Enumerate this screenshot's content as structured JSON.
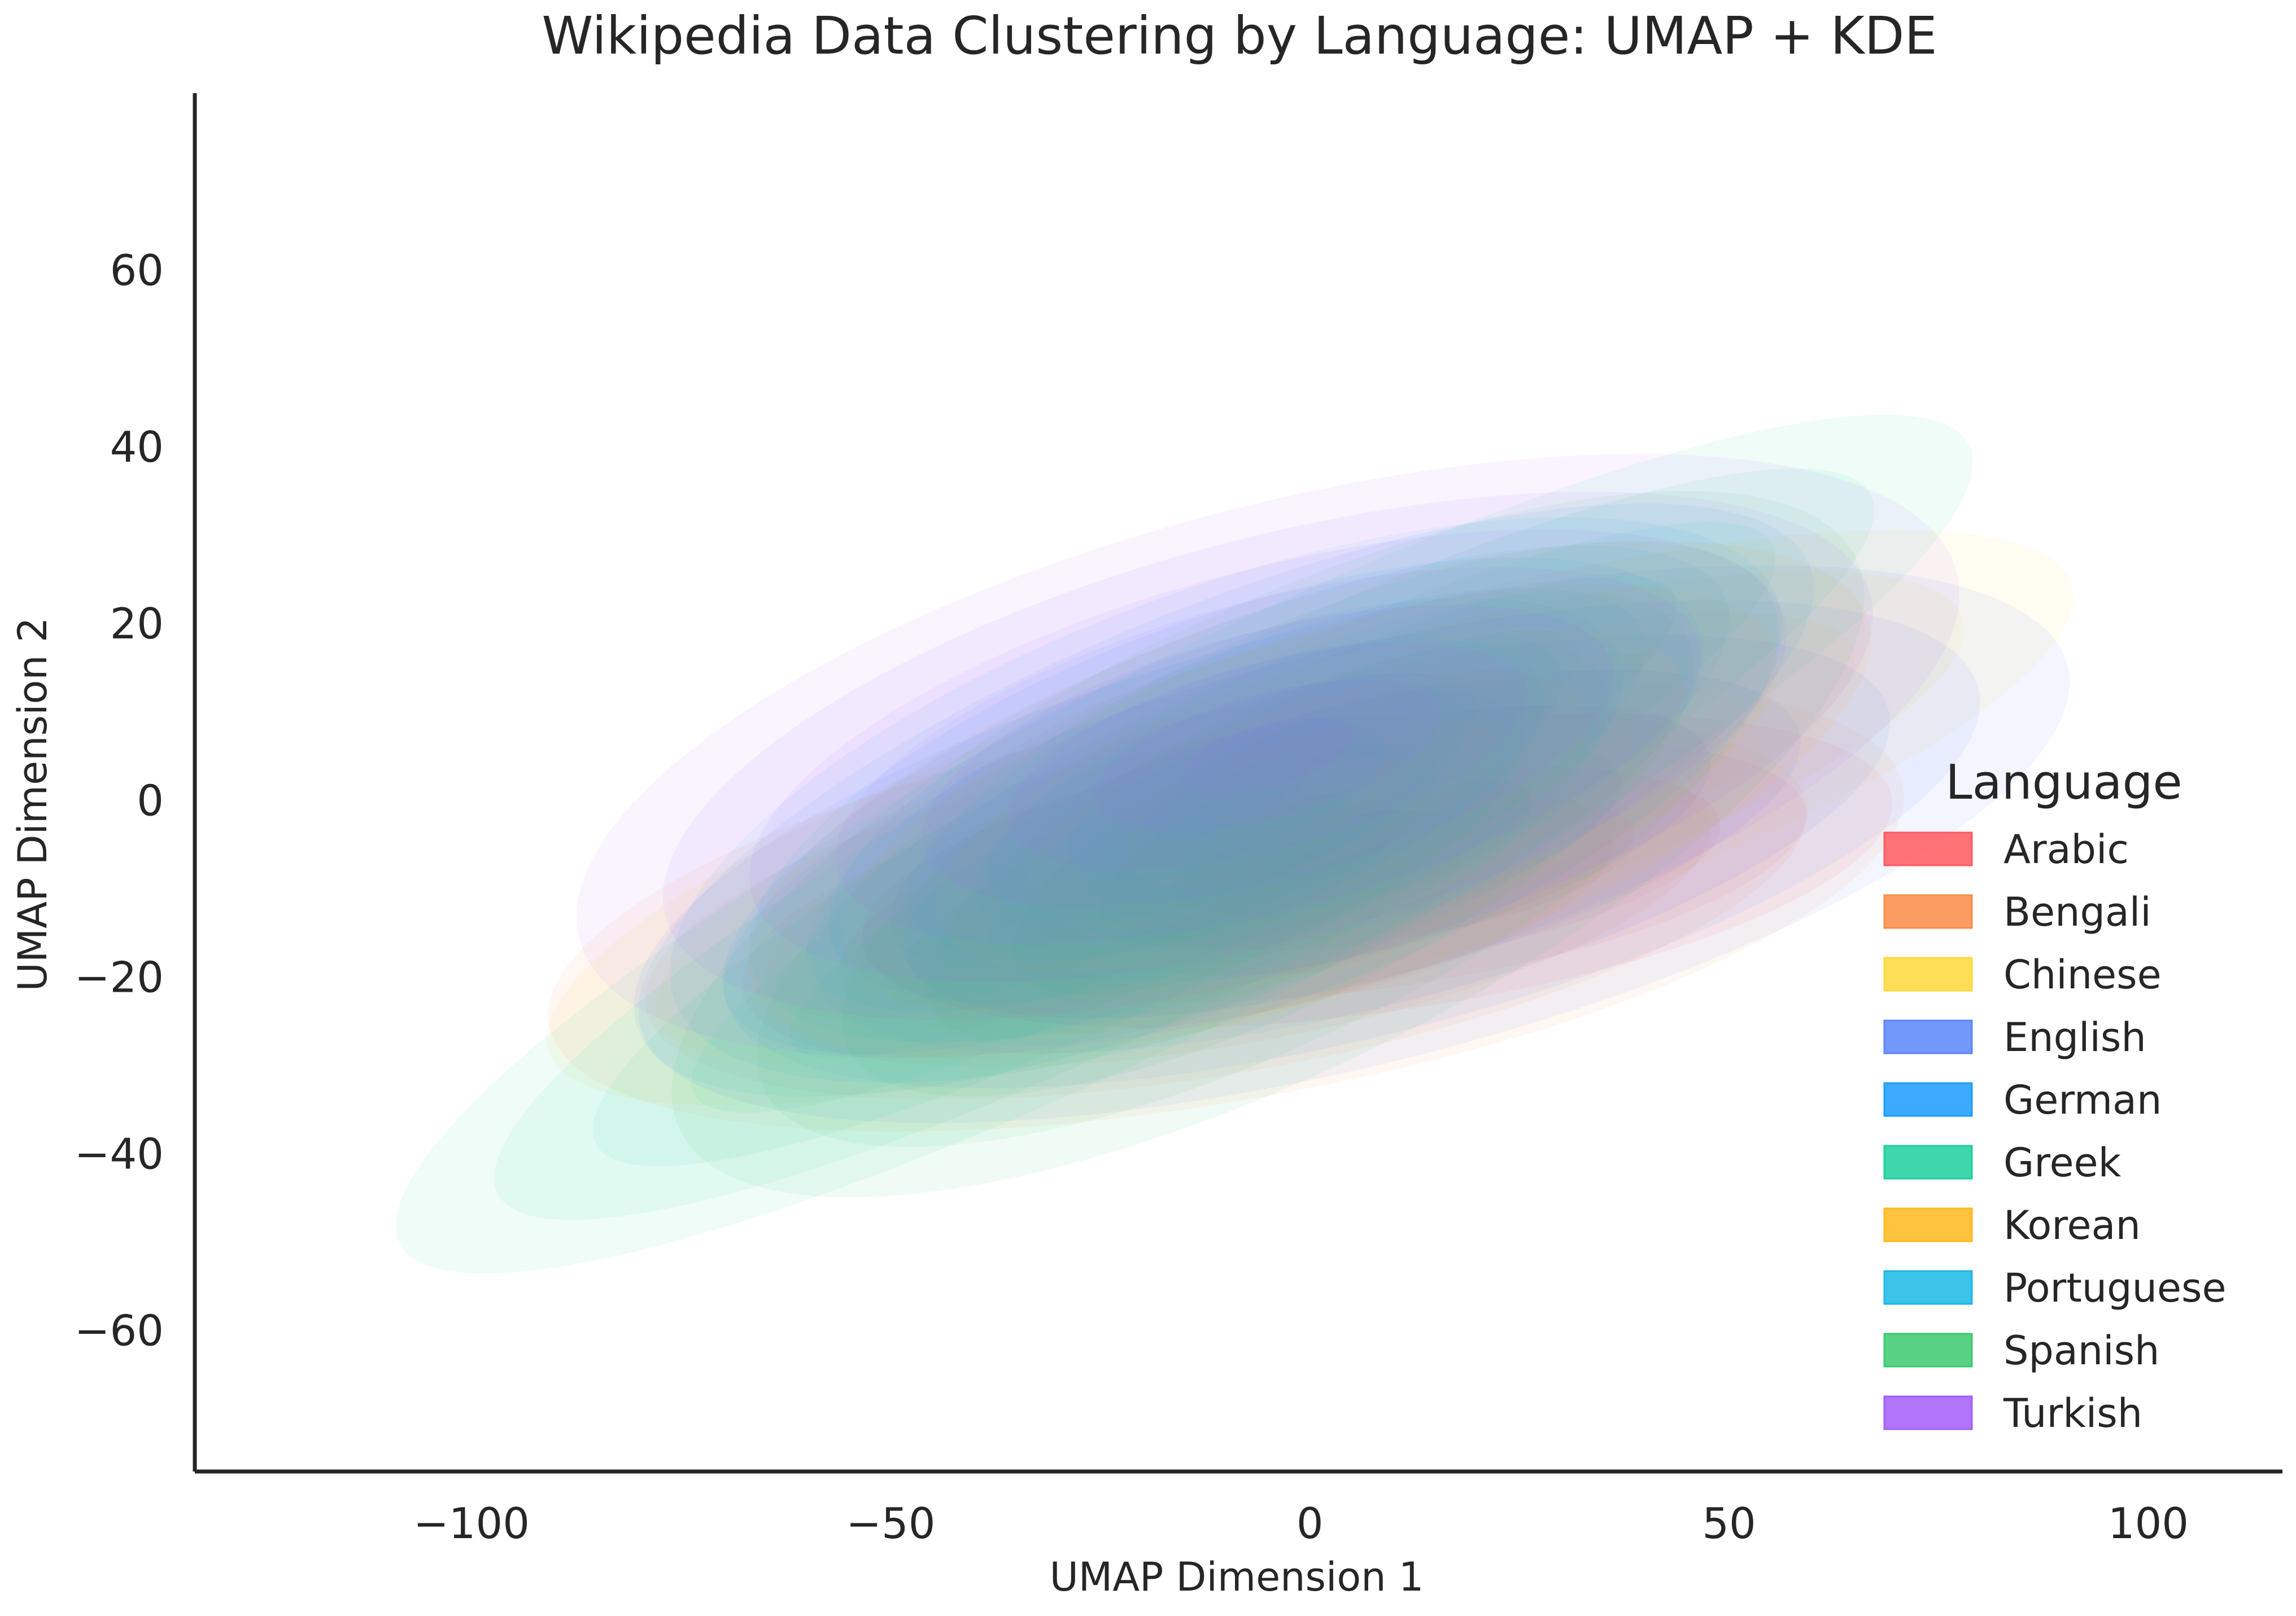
{
  "chart_data": {
    "type": "kde-contour",
    "title": "Wikipedia Data Clustering by Language: UMAP + KDE",
    "xlabel": "UMAP Dimension 1",
    "ylabel": "UMAP Dimension 2",
    "xlim": [
      -133,
      116
    ],
    "ylim": [
      -76,
      80
    ],
    "xticks": [
      -100,
      -50,
      0,
      50,
      100
    ],
    "yticks": [
      -60,
      -40,
      -20,
      0,
      20,
      40,
      60
    ],
    "xtick_labels": [
      "−100",
      "−50",
      "0",
      "50",
      "100"
    ],
    "ytick_labels": [
      "−60",
      "−40",
      "−20",
      "0",
      "20",
      "40",
      "60"
    ],
    "grid": false,
    "legend": {
      "title": "Language",
      "placement": "right"
    },
    "series": [
      {
        "name": "Arabic",
        "color": "#ff5a5f",
        "center": [
          8,
          -8
        ],
        "extent": [
          62,
          16
        ],
        "angle_deg": 8,
        "levels": 6
      },
      {
        "name": "Bengali",
        "color": "#fa8c47",
        "center": [
          -10,
          -12
        ],
        "extent": [
          82,
          22
        ],
        "angle_deg": 10,
        "levels": 7
      },
      {
        "name": "Chinese",
        "color": "#ffd83a",
        "center": [
          0,
          -2
        ],
        "extent": [
          95,
          20
        ],
        "angle_deg": 17,
        "levels": 7
      },
      {
        "name": "English",
        "color": "#5b86fa",
        "center": [
          5,
          -5
        ],
        "extent": [
          88,
          25
        ],
        "angle_deg": 14,
        "levels": 8
      },
      {
        "name": "German",
        "color": "#1a9cff",
        "center": [
          -10,
          0
        ],
        "extent": [
          75,
          22
        ],
        "angle_deg": 22,
        "levels": 7
      },
      {
        "name": "Greek",
        "color": "#1ccf9b",
        "center": [
          -15,
          -5
        ],
        "extent": [
          105,
          20
        ],
        "angle_deg": 27,
        "levels": 8
      },
      {
        "name": "Korean",
        "color": "#ffb81c",
        "center": [
          0,
          0
        ],
        "extent": [
          70,
          22
        ],
        "angle_deg": 18,
        "levels": 6
      },
      {
        "name": "Portuguese",
        "color": "#1ab8e6",
        "center": [
          -10,
          0
        ],
        "extent": [
          70,
          24
        ],
        "angle_deg": 20,
        "levels": 7
      },
      {
        "name": "Spanish",
        "color": "#3cc96f",
        "center": [
          -5,
          -5
        ],
        "extent": [
          78,
          26
        ],
        "angle_deg": 26,
        "levels": 7
      },
      {
        "name": "Turkish",
        "color": "#a35dfa",
        "center": [
          -5,
          5
        ],
        "extent": [
          85,
          28
        ],
        "angle_deg": 15,
        "levels": 8
      }
    ]
  }
}
